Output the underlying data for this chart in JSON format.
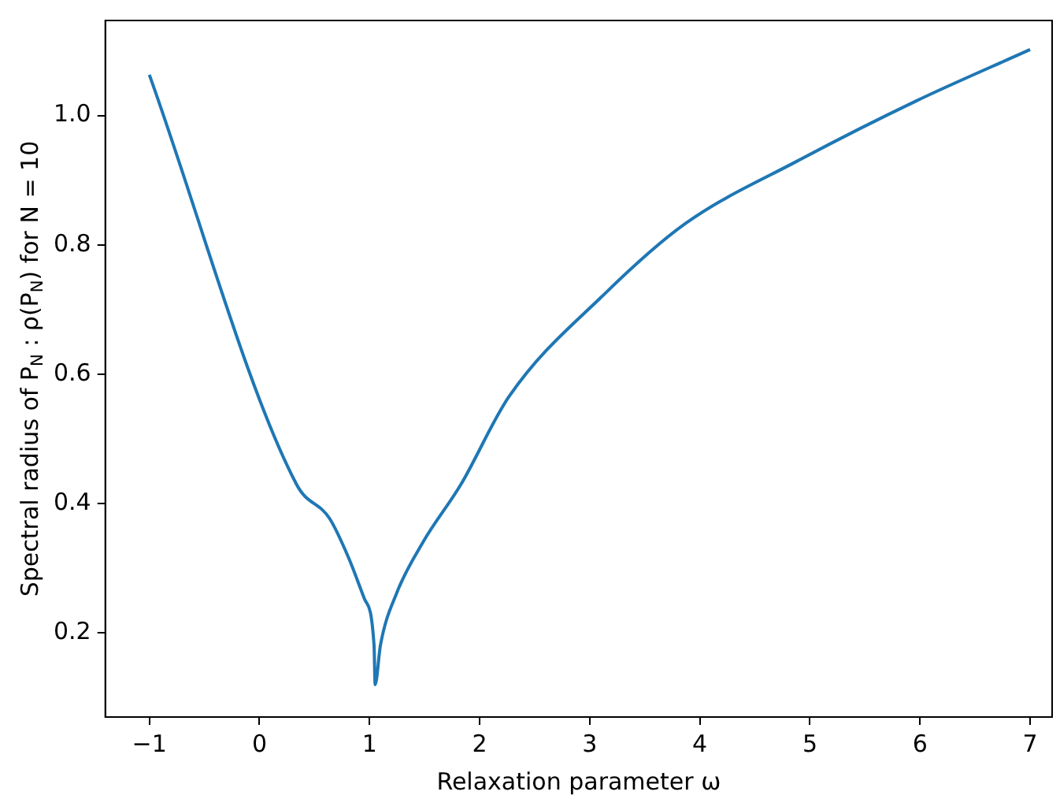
{
  "chart_data": {
    "type": "line",
    "xlabel": "Relaxation parameter ω",
    "ylabel": "Spectral radius of P$_{N}$ : ρ(P$_{N}$) for N = 10",
    "x": [
      -1,
      0.336,
      0.637,
      0.808,
      0.953,
      1.041,
      1.051,
      1.099,
      1.245,
      1.488,
      1.828,
      2.265,
      3.14,
      3.869,
      4.889,
      5.958,
      7
    ],
    "series": [
      {
        "color": "#1f77b4",
        "values": [
          1.063,
          0.43,
          0.377,
          0.317,
          0.253,
          0.181,
          0.12,
          0.181,
          0.261,
          0.341,
          0.429,
          0.565,
          0.725,
          0.833,
          0.93,
          1.022,
          1.102
        ]
      }
    ],
    "xlim": [
      -1.4,
      7.2
    ],
    "ylim": [
      0.07,
      1.147
    ],
    "xticks": [
      {
        "value": -1,
        "label": "−1"
      },
      0,
      1,
      2,
      3,
      4,
      5,
      6,
      7
    ],
    "yticks": [
      0.2,
      0.4,
      0.6,
      0.8,
      {
        "value": 1,
        "label": "1.0"
      }
    ],
    "grid": false,
    "legend": false,
    "marker": "none",
    "line_style": "solid"
  }
}
